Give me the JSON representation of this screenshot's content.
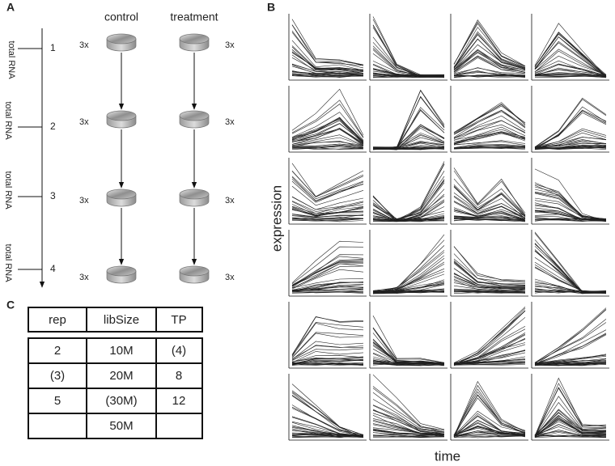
{
  "panel_labels": {
    "a": "A",
    "b": "B",
    "c": "C"
  },
  "panel_a": {
    "column_headers": [
      "control",
      "treatment"
    ],
    "rows": [
      {
        "time": "1",
        "rna": "total RNA",
        "control_rep": "3x",
        "treatment_rep": "3x"
      },
      {
        "time": "2",
        "rna": "total RNA",
        "control_rep": "3x",
        "treatment_rep": "3x"
      },
      {
        "time": "3",
        "rna": "total RNA",
        "control_rep": "3x",
        "treatment_rep": "3x"
      },
      {
        "time": "4",
        "rna": "total RNA",
        "control_rep": "3x",
        "treatment_rep": "3x"
      }
    ]
  },
  "panel_b": {
    "y_label": "expression",
    "x_label": "time"
  },
  "panel_c": {
    "header": [
      "rep",
      "libSize",
      "TP"
    ],
    "columns": [
      [
        "2",
        "(3)",
        "5"
      ],
      [
        "10M",
        "20M",
        "(30M)",
        "50M"
      ],
      [
        "(4)",
        "8",
        "12"
      ]
    ]
  }
}
